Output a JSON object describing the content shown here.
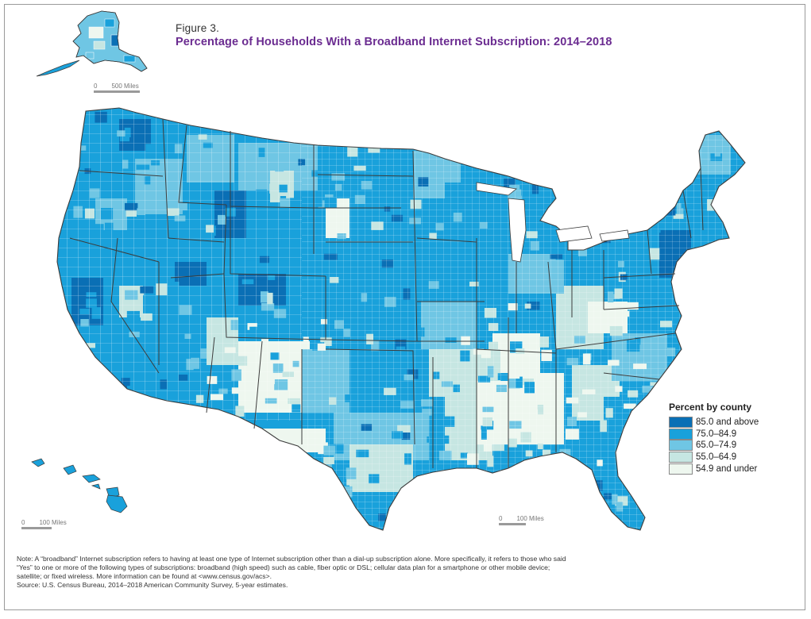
{
  "figure": {
    "label": "Figure 3.",
    "title": "Percentage of Households With a Broadband Internet Subscription: 2014–2018"
  },
  "legend": {
    "title": "Percent by county",
    "items": [
      {
        "label": "85.0 and above",
        "color": "#0a6fb5"
      },
      {
        "label": "75.0–84.9",
        "color": "#19a1db"
      },
      {
        "label": "65.0–74.9",
        "color": "#6fc6e4"
      },
      {
        "label": "55.0–64.9",
        "color": "#c6e6e2"
      },
      {
        "label": "54.9 and under",
        "color": "#eef7ef"
      }
    ]
  },
  "scales": {
    "alaska": {
      "zero": "0",
      "distance": "500 Miles"
    },
    "hawaii": {
      "zero": "0",
      "distance": "100 Miles"
    },
    "florida": {
      "zero": "0",
      "distance": "100 Miles"
    }
  },
  "notes": [
    "Note: A “broadband” Internet subscription refers to having at least one type of Internet subscription other than a dial-up subscription alone. More specifically, it refers to those who said",
    "“Yes” to one or more of the following types of subscriptions: broadband (high speed) such as cable, fiber optic or DSL; cellular data plan for a smartphone or other mobile device;",
    "satellite; or fixed wireless. More information can be found at <www.census.gov/acs>.",
    "Source: U.S. Census Bureau, 2014–2018 American Community Survey, 5-year estimates."
  ],
  "map_colors": {
    "border": "#3c3c3c",
    "county_line": "#ffffff"
  }
}
